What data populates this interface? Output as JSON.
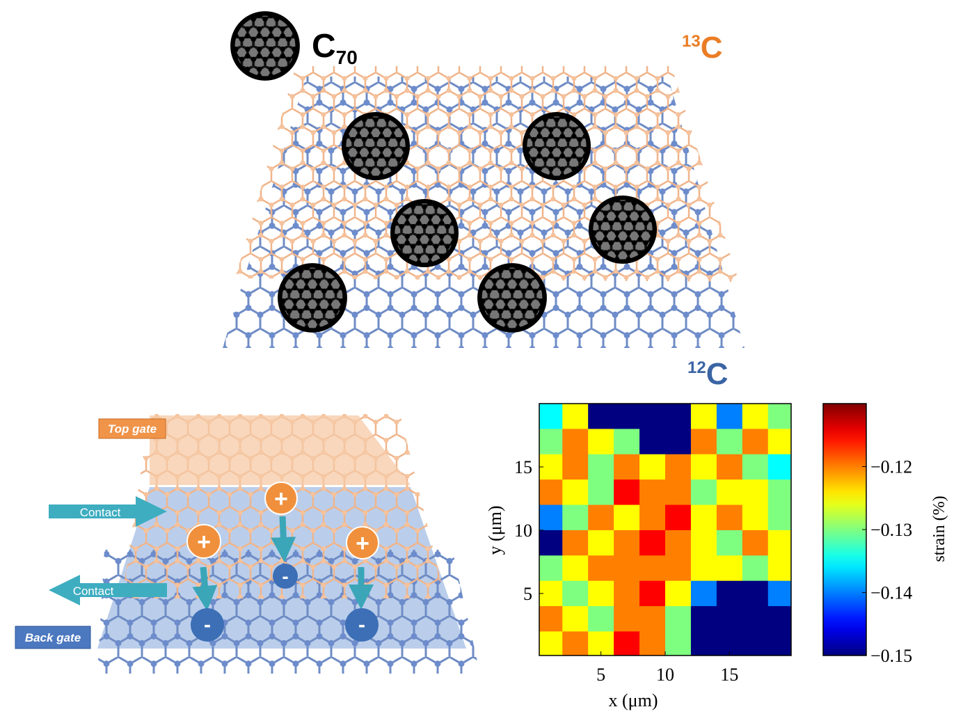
{
  "top_figure": {
    "molecule": {
      "symbol": "C",
      "subscript": "70"
    },
    "upper_layer": {
      "isotope": "13",
      "symbol": "C"
    },
    "lower_layer": {
      "isotope": "12",
      "symbol": "C"
    }
  },
  "device": {
    "top_gate": "Top gate",
    "back_gate": "Back gate",
    "contacts": [
      "Contact",
      "Contact"
    ],
    "charges": {
      "positive": [
        "+",
        "+",
        "+"
      ],
      "negative": [
        "-",
        "-",
        "-"
      ]
    }
  },
  "chart_data": {
    "type": "heatmap",
    "xlabel": "x (μm)",
    "ylabel": "y (μm)",
    "colorbar_label": "strain (%)",
    "xlim": [
      0.2,
      19.8
    ],
    "ylim": [
      0.1,
      20
    ],
    "xticks": [
      5,
      10,
      15
    ],
    "yticks": [
      5,
      10,
      15
    ],
    "clim": [
      -0.15,
      -0.11
    ],
    "cticks": [
      {
        "value": -0.12,
        "label": "−0.12"
      },
      {
        "value": -0.13,
        "label": "−0.13"
      },
      {
        "value": -0.14,
        "label": "−0.14"
      },
      {
        "value": -0.15,
        "label": "−0.15"
      }
    ],
    "colormap": "jet",
    "x": [
      1,
      3,
      5,
      7,
      9,
      11,
      13,
      15,
      17,
      19
    ],
    "y": [
      19,
      17,
      15,
      13,
      11,
      9,
      7,
      5,
      3,
      1
    ],
    "values": [
      [
        -0.135,
        -0.125,
        -0.15,
        -0.15,
        -0.15,
        -0.15,
        -0.125,
        -0.14,
        -0.125,
        -0.13
      ],
      [
        -0.13,
        -0.12,
        -0.125,
        -0.13,
        -0.15,
        -0.15,
        -0.12,
        -0.13,
        -0.12,
        -0.125
      ],
      [
        -0.125,
        -0.12,
        -0.13,
        -0.12,
        -0.125,
        -0.12,
        -0.125,
        -0.12,
        -0.13,
        -0.135
      ],
      [
        -0.12,
        -0.125,
        -0.13,
        -0.115,
        -0.12,
        -0.12,
        -0.13,
        -0.125,
        -0.125,
        -0.13
      ],
      [
        -0.14,
        -0.13,
        -0.12,
        -0.125,
        -0.12,
        -0.115,
        -0.125,
        -0.12,
        -0.125,
        -0.13
      ],
      [
        -0.15,
        -0.12,
        -0.125,
        -0.12,
        -0.115,
        -0.12,
        -0.125,
        -0.13,
        -0.12,
        -0.125
      ],
      [
        -0.13,
        -0.125,
        -0.12,
        -0.12,
        -0.12,
        -0.12,
        -0.125,
        -0.125,
        -0.13,
        -0.125
      ],
      [
        -0.125,
        -0.13,
        -0.125,
        -0.12,
        -0.115,
        -0.125,
        -0.14,
        -0.15,
        -0.15,
        -0.14
      ],
      [
        -0.12,
        -0.125,
        -0.13,
        -0.12,
        -0.12,
        -0.13,
        -0.15,
        -0.15,
        -0.15,
        -0.15
      ],
      [
        -0.125,
        -0.12,
        -0.125,
        -0.115,
        -0.12,
        -0.13,
        -0.15,
        -0.15,
        -0.15,
        -0.15
      ]
    ]
  }
}
